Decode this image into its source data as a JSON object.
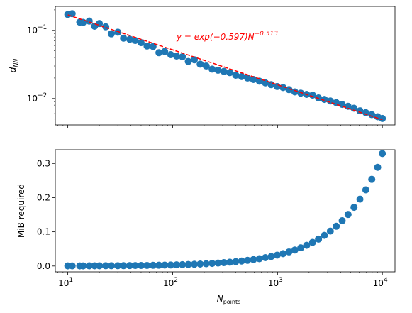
{
  "chart_data": [
    {
      "type": "scatter",
      "title": "",
      "xlabel": "",
      "ylabel": "d_NN",
      "xscale": "log",
      "yscale": "log",
      "xlim": [
        7.6,
        13200
      ],
      "ylim": [
        0.0041,
        0.225
      ],
      "x_ticks": [
        {
          "value": 10,
          "base": "10",
          "exp": "1"
        },
        {
          "value": 100,
          "base": "10",
          "exp": "2"
        },
        {
          "value": 1000,
          "base": "10",
          "exp": "3"
        },
        {
          "value": 10000,
          "base": "10",
          "exp": "4"
        }
      ],
      "y_ticks": [
        {
          "value": 0.01,
          "base": "10",
          "exp": "−2"
        },
        {
          "value": 0.1,
          "base": "10",
          "exp": "−1"
        }
      ],
      "grid": false,
      "series": [
        {
          "kind": "scatter",
          "color": "#1f77b4",
          "x": [
            10,
            11,
            13,
            14,
            16,
            18,
            20,
            23,
            26,
            30,
            34,
            39,
            44,
            50,
            57,
            65,
            74,
            84,
            96,
            109,
            124,
            141,
            161,
            183,
            209,
            238,
            271,
            308,
            351,
            400,
            455,
            518,
            590,
            672,
            765,
            871,
            992,
            1129,
            1286,
            1464,
            1667,
            1898,
            2161,
            2461,
            2802,
            3191,
            3634,
            4138,
            4712,
            5366,
            6110,
            6958,
            7923,
            9022,
            10000
          ],
          "y": [
            0.171,
            0.176,
            0.132,
            0.131,
            0.137,
            0.115,
            0.126,
            0.113,
            0.089,
            0.094,
            0.077,
            0.074,
            0.071,
            0.066,
            0.059,
            0.058,
            0.047,
            0.049,
            0.044,
            0.042,
            0.041,
            0.035,
            0.037,
            0.032,
            0.03,
            0.027,
            0.026,
            0.025,
            0.024,
            0.022,
            0.021,
            0.02,
            0.019,
            0.018,
            0.017,
            0.016,
            0.015,
            0.0145,
            0.0135,
            0.0125,
            0.012,
            0.0115,
            0.0112,
            0.0102,
            0.0097,
            0.0092,
            0.0087,
            0.0082,
            0.0077,
            0.0072,
            0.0066,
            0.0062,
            0.0058,
            0.0054,
            0.0051
          ]
        },
        {
          "kind": "fit-line",
          "color": "#ff0000",
          "x": [
            10,
            10000
          ],
          "formula_a": -0.597,
          "formula_b": -0.513
        }
      ],
      "annotation": {
        "prefix": "y = exp(−0.597)N",
        "exponent": "−0.513",
        "color": "#ff0000"
      }
    },
    {
      "type": "scatter",
      "title": "",
      "xlabel": "N_points",
      "ylabel": "MiB required",
      "xscale": "log",
      "yscale": "linear",
      "xlim": [
        7.6,
        13200
      ],
      "ylim": [
        -0.017,
        0.34
      ],
      "x_ticks": [
        {
          "value": 10,
          "base": "10",
          "exp": "1"
        },
        {
          "value": 100,
          "base": "10",
          "exp": "2"
        },
        {
          "value": 1000,
          "base": "10",
          "exp": "3"
        },
        {
          "value": 10000,
          "base": "10",
          "exp": "4"
        }
      ],
      "y_ticks": [
        {
          "value": 0.0,
          "label": "0.0"
        },
        {
          "value": 0.1,
          "label": "0.1"
        },
        {
          "value": 0.2,
          "label": "0.2"
        },
        {
          "value": 0.3,
          "label": "0.3"
        }
      ],
      "grid": false,
      "series": [
        {
          "kind": "scatter",
          "color": "#1f77b4",
          "x": [
            10,
            11,
            13,
            14,
            16,
            18,
            20,
            23,
            26,
            30,
            34,
            39,
            44,
            50,
            57,
            65,
            74,
            84,
            96,
            109,
            124,
            141,
            161,
            183,
            209,
            238,
            271,
            308,
            351,
            400,
            455,
            518,
            590,
            672,
            765,
            871,
            992,
            1129,
            1286,
            1464,
            1667,
            1898,
            2161,
            2461,
            2802,
            3191,
            3634,
            4138,
            4712,
            5366,
            6110,
            6958,
            7923,
            9022,
            10000
          ],
          "y": [
            0.0004,
            0.0004,
            0.0005,
            0.0005,
            0.0006,
            0.0006,
            0.0007,
            0.0008,
            0.0009,
            0.001,
            0.0011,
            0.0013,
            0.0014,
            0.0016,
            0.0018,
            0.0021,
            0.0024,
            0.0027,
            0.0031,
            0.0035,
            0.004,
            0.0046,
            0.0052,
            0.0059,
            0.0067,
            0.0076,
            0.0087,
            0.0099,
            0.0112,
            0.0128,
            0.0146,
            0.0166,
            0.0189,
            0.0215,
            0.0245,
            0.0279,
            0.0318,
            0.0362,
            0.0412,
            0.0469,
            0.0533,
            0.0607,
            0.0692,
            0.0788,
            0.0897,
            0.1021,
            0.1163,
            0.1324,
            0.1508,
            0.1717,
            0.1955,
            0.2227,
            0.2535,
            0.2887,
            0.3288
          ]
        }
      ]
    }
  ]
}
